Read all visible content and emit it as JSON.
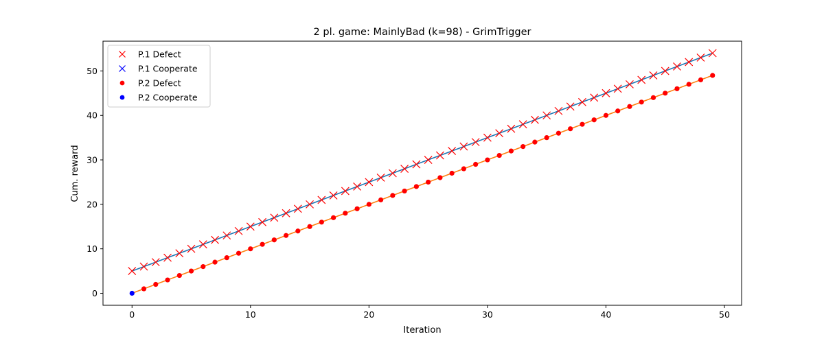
{
  "chart_data": {
    "type": "line",
    "title": "2 pl. game: MainlyBad (k=98) - GrimTrigger",
    "xlabel": "Iteration",
    "ylabel": "Cum. reward",
    "xlim": [
      -2.45,
      51.45
    ],
    "ylim": [
      -2.7,
      56.7
    ],
    "xticks": [
      0,
      10,
      20,
      30,
      40,
      50
    ],
    "yticks": [
      0,
      10,
      20,
      30,
      40,
      50
    ],
    "grid": false,
    "legend_position": "top-left",
    "legend": [
      {
        "label": "P.1 Defect",
        "marker": "x",
        "color": "#ff0000"
      },
      {
        "label": "P.1 Cooperate",
        "marker": "x",
        "color": "#0000ff"
      },
      {
        "label": "P.2 Defect",
        "marker": "dot",
        "color": "#ff0000"
      },
      {
        "label": "P.2 Cooperate",
        "marker": "dot",
        "color": "#0000ff"
      }
    ],
    "series": [
      {
        "name": "P.1",
        "line_color": "#1f77b4",
        "x": [
          0,
          1,
          2,
          3,
          4,
          5,
          6,
          7,
          8,
          9,
          10,
          11,
          12,
          13,
          14,
          15,
          16,
          17,
          18,
          19,
          20,
          21,
          22,
          23,
          24,
          25,
          26,
          27,
          28,
          29,
          30,
          31,
          32,
          33,
          34,
          35,
          36,
          37,
          38,
          39,
          40,
          41,
          42,
          43,
          44,
          45,
          46,
          47,
          48,
          49
        ],
        "y": [
          5,
          6,
          7,
          8,
          9,
          10,
          11,
          12,
          13,
          14,
          15,
          16,
          17,
          18,
          19,
          20,
          21,
          22,
          23,
          24,
          25,
          26,
          27,
          28,
          29,
          30,
          31,
          32,
          33,
          34,
          35,
          36,
          37,
          38,
          39,
          40,
          41,
          42,
          43,
          44,
          45,
          46,
          47,
          48,
          49,
          50,
          51,
          52,
          53,
          54
        ],
        "actions": [
          "Defect"
        ]
      },
      {
        "name": "P.2",
        "line_color": "#ff7f0e",
        "x": [
          0,
          1,
          2,
          3,
          4,
          5,
          6,
          7,
          8,
          9,
          10,
          11,
          12,
          13,
          14,
          15,
          16,
          17,
          18,
          19,
          20,
          21,
          22,
          23,
          24,
          25,
          26,
          27,
          28,
          29,
          30,
          31,
          32,
          33,
          34,
          35,
          36,
          37,
          38,
          39,
          40,
          41,
          42,
          43,
          44,
          45,
          46,
          47,
          48,
          49
        ],
        "y": [
          0,
          1,
          2,
          3,
          4,
          5,
          6,
          7,
          8,
          9,
          10,
          11,
          12,
          13,
          14,
          15,
          16,
          17,
          18,
          19,
          20,
          21,
          22,
          23,
          24,
          25,
          26,
          27,
          28,
          29,
          30,
          31,
          32,
          33,
          34,
          35,
          36,
          37,
          38,
          39,
          40,
          41,
          42,
          43,
          44,
          45,
          46,
          47,
          48,
          49
        ],
        "actions": [
          "Cooperate",
          "Defect"
        ]
      }
    ]
  }
}
